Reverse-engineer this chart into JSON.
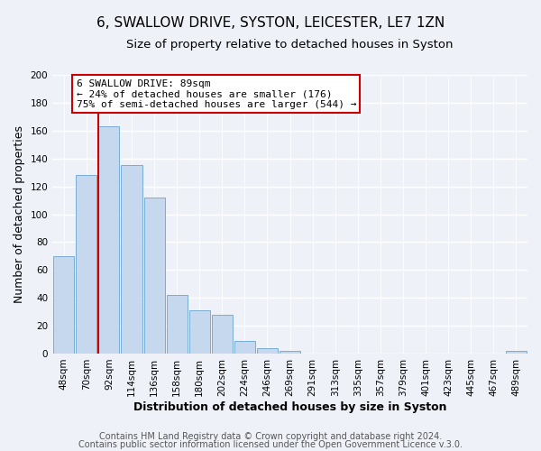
{
  "title": "6, SWALLOW DRIVE, SYSTON, LEICESTER, LE7 1ZN",
  "subtitle": "Size of property relative to detached houses in Syston",
  "xlabel": "Distribution of detached houses by size in Syston",
  "ylabel": "Number of detached properties",
  "bar_labels": [
    "48sqm",
    "70sqm",
    "92sqm",
    "114sqm",
    "136sqm",
    "158sqm",
    "180sqm",
    "202sqm",
    "224sqm",
    "246sqm",
    "269sqm",
    "291sqm",
    "313sqm",
    "335sqm",
    "357sqm",
    "379sqm",
    "401sqm",
    "423sqm",
    "445sqm",
    "467sqm",
    "489sqm"
  ],
  "bar_values": [
    70,
    128,
    163,
    135,
    112,
    42,
    31,
    28,
    9,
    4,
    2,
    0,
    0,
    0,
    0,
    0,
    0,
    0,
    0,
    0,
    2
  ],
  "bar_color": "#c5d8ee",
  "bar_edge_color": "#7aadd4",
  "ylim": [
    0,
    200
  ],
  "yticks": [
    0,
    20,
    40,
    60,
    80,
    100,
    120,
    140,
    160,
    180,
    200
  ],
  "vline_color": "#cc0000",
  "annotation_title": "6 SWALLOW DRIVE: 89sqm",
  "annotation_line1": "← 24% of detached houses are smaller (176)",
  "annotation_line2": "75% of semi-detached houses are larger (544) →",
  "annotation_box_facecolor": "#ffffff",
  "annotation_box_edgecolor": "#cc0000",
  "footer1": "Contains HM Land Registry data © Crown copyright and database right 2024.",
  "footer2": "Contains public sector information licensed under the Open Government Licence v.3.0.",
  "background_color": "#eef2f8",
  "plot_bg_color": "#eef2f8",
  "grid_color": "#ffffff",
  "title_fontsize": 11,
  "subtitle_fontsize": 9.5,
  "axis_label_fontsize": 9,
  "tick_fontsize": 7.5,
  "footer_fontsize": 7,
  "annot_fontsize": 8
}
